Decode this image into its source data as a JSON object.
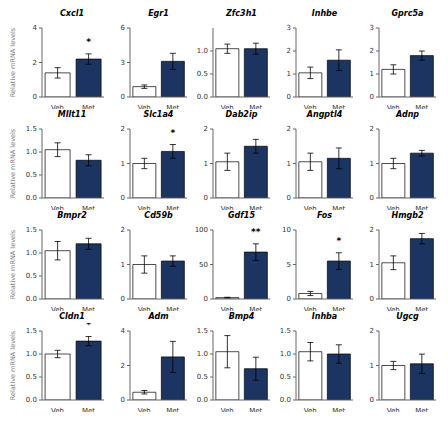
{
  "chart_data": [
    {
      "type": "bar",
      "title": "Cxcl1",
      "categories": [
        "Veh",
        "Met"
      ],
      "values": [
        1.4,
        2.2
      ],
      "errors": [
        0.3,
        0.3
      ],
      "colors": [
        "#FFFFFF",
        "#1c3461"
      ],
      "ylim": [
        0,
        4
      ],
      "yticks": [
        0,
        2,
        4
      ],
      "annotations": [
        {
          "x": "Met",
          "text": "*"
        }
      ],
      "ylabel": "Relative mRNA levels"
    },
    {
      "type": "bar",
      "title": "Egr1",
      "categories": [
        "Veh",
        "Met"
      ],
      "values": [
        0.9,
        3.1
      ],
      "errors": [
        0.15,
        0.7
      ],
      "colors": [
        "#FFFFFF",
        "#1c3461"
      ],
      "ylim": [
        0,
        6
      ],
      "yticks": [
        0,
        3,
        6
      ]
    },
    {
      "type": "bar",
      "title": "Zfc3h1",
      "categories": [
        "Veh",
        "Met"
      ],
      "values": [
        1.05,
        1.05
      ],
      "errors": [
        0.1,
        0.12
      ],
      "colors": [
        "#FFFFFF",
        "#1c3461"
      ],
      "ylim": [
        0,
        1.5
      ],
      "yticks": [
        {
          "value": 0,
          "label": "0.0"
        },
        0.5,
        {
          "value": 1,
          "label": "1.0"
        }
      ]
    },
    {
      "type": "bar",
      "title": "Inhbe",
      "categories": [
        "Veh",
        "Met"
      ],
      "values": [
        1.05,
        1.6
      ],
      "errors": [
        0.25,
        0.45
      ],
      "colors": [
        "#FFFFFF",
        "#1c3461"
      ],
      "ylim": [
        0,
        3
      ],
      "yticks": [
        0,
        1,
        2,
        3
      ]
    },
    {
      "type": "bar",
      "title": "Gprc5a",
      "categories": [
        "Veh",
        "Met"
      ],
      "values": [
        1.2,
        1.8
      ],
      "errors": [
        0.2,
        0.2
      ],
      "colors": [
        "#FFFFFF",
        "#1c3461"
      ],
      "ylim": [
        0,
        3
      ],
      "yticks": [
        0,
        1,
        2,
        3
      ]
    },
    {
      "type": "bar",
      "title": "Mllt11",
      "categories": [
        "Veh",
        "Met"
      ],
      "values": [
        1.05,
        0.82
      ],
      "errors": [
        0.15,
        0.12
      ],
      "colors": [
        "#FFFFFF",
        "#1c3461"
      ],
      "ylim": [
        0,
        1.5
      ],
      "yticks": [
        {
          "value": 0,
          "label": "0.0"
        },
        0.5,
        {
          "value": 1,
          "label": "1.0"
        },
        1.5
      ],
      "ylabel": "Relative mRNA levels"
    },
    {
      "type": "bar",
      "title": "Slc1a4",
      "categories": [
        "Veh",
        "Met"
      ],
      "values": [
        1.0,
        1.35
      ],
      "errors": [
        0.15,
        0.2
      ],
      "colors": [
        "#FFFFFF",
        "#1c3461"
      ],
      "ylim": [
        0,
        2
      ],
      "yticks": [
        0,
        1,
        2
      ],
      "annotations": [
        {
          "x": "Met",
          "text": "*"
        }
      ]
    },
    {
      "type": "bar",
      "title": "Dab2ip",
      "categories": [
        "Veh",
        "Met"
      ],
      "values": [
        1.05,
        1.5
      ],
      "errors": [
        0.25,
        0.2
      ],
      "colors": [
        "#FFFFFF",
        "#1c3461"
      ],
      "ylim": [
        0,
        2
      ],
      "yticks": [
        0,
        1,
        2
      ]
    },
    {
      "type": "bar",
      "title": "Angptl4",
      "categories": [
        "Veh",
        "Met"
      ],
      "values": [
        1.05,
        1.15
      ],
      "errors": [
        0.25,
        0.3
      ],
      "colors": [
        "#FFFFFF",
        "#1c3461"
      ],
      "ylim": [
        0,
        2
      ],
      "yticks": [
        0,
        1,
        2
      ]
    },
    {
      "type": "bar",
      "title": "Adnp",
      "categories": [
        "Veh",
        "Met"
      ],
      "values": [
        1.0,
        1.3
      ],
      "errors": [
        0.15,
        0.08
      ],
      "colors": [
        "#FFFFFF",
        "#1c3461"
      ],
      "ylim": [
        0,
        2
      ],
      "yticks": [
        0,
        1,
        2
      ]
    },
    {
      "type": "bar",
      "title": "Bmpr2",
      "categories": [
        "Veh",
        "Met"
      ],
      "values": [
        1.05,
        1.2
      ],
      "errors": [
        0.2,
        0.12
      ],
      "colors": [
        "#FFFFFF",
        "#1c3461"
      ],
      "ylim": [
        0,
        1.5
      ],
      "yticks": [
        {
          "value": 0,
          "label": "0.0"
        },
        0.5,
        {
          "value": 1,
          "label": "1.0"
        },
        1.5
      ],
      "ylabel": "Relative mRNA levels"
    },
    {
      "type": "bar",
      "title": "Cd59b",
      "categories": [
        "Veh",
        "Met"
      ],
      "values": [
        1.0,
        1.1
      ],
      "errors": [
        0.25,
        0.15
      ],
      "colors": [
        "#FFFFFF",
        "#1c3461"
      ],
      "ylim": [
        0,
        2
      ],
      "yticks": [
        0,
        1,
        2
      ]
    },
    {
      "type": "bar",
      "title": "Gdf15",
      "categories": [
        "Veh",
        "Met"
      ],
      "values": [
        2.0,
        68.0
      ],
      "errors": [
        0.5,
        12.0
      ],
      "colors": [
        "#FFFFFF",
        "#1c3461"
      ],
      "ylim": [
        0,
        100
      ],
      "yticks": [
        0,
        50,
        100
      ],
      "annotations": [
        {
          "x": "Met",
          "text": "**"
        }
      ]
    },
    {
      "type": "bar",
      "title": "Fos",
      "categories": [
        "Veh",
        "Met"
      ],
      "values": [
        0.8,
        5.5
      ],
      "errors": [
        0.3,
        1.2
      ],
      "colors": [
        "#FFFFFF",
        "#1c3461"
      ],
      "ylim": [
        0,
        10
      ],
      "yticks": [
        0,
        5,
        10
      ],
      "annotations": [
        {
          "x": "Met",
          "text": "*"
        }
      ]
    },
    {
      "type": "bar",
      "title": "Hmgb2",
      "categories": [
        "Veh",
        "Met"
      ],
      "values": [
        1.05,
        1.75
      ],
      "errors": [
        0.2,
        0.15
      ],
      "colors": [
        "#FFFFFF",
        "#1c3461"
      ],
      "ylim": [
        0,
        2
      ],
      "yticks": [
        0,
        1,
        2
      ],
      "annotations": [
        {
          "x": "Met",
          "text": "*"
        }
      ]
    },
    {
      "type": "bar",
      "title": "Cldn1",
      "categories": [
        "Veh",
        "Met"
      ],
      "values": [
        1.0,
        1.28
      ],
      "errors": [
        0.08,
        0.1
      ],
      "colors": [
        "#FFFFFF",
        "#1c3461"
      ],
      "ylim": [
        0,
        1.5
      ],
      "yticks": [
        {
          "value": 0,
          "label": "0.0"
        },
        0.5,
        {
          "value": 1,
          "label": "1.0"
        },
        1.5
      ],
      "annotations": [
        {
          "x": "Met",
          "text": "*"
        }
      ],
      "ylabel": "Relative mRNA levels"
    },
    {
      "type": "bar",
      "title": "Adm",
      "categories": [
        "Veh",
        "Met"
      ],
      "values": [
        0.45,
        2.5
      ],
      "errors": [
        0.1,
        0.9
      ],
      "colors": [
        "#FFFFFF",
        "#1c3461"
      ],
      "ylim": [
        0,
        4
      ],
      "yticks": [
        0,
        2,
        4
      ]
    },
    {
      "type": "bar",
      "title": "Bmp4",
      "categories": [
        "Veh",
        "Met"
      ],
      "values": [
        1.05,
        0.68
      ],
      "errors": [
        0.35,
        0.25
      ],
      "colors": [
        "#FFFFFF",
        "#1c3461"
      ],
      "ylim": [
        0,
        1.5
      ],
      "yticks": [
        {
          "value": 0,
          "label": "0.0"
        },
        0.5,
        {
          "value": 1,
          "label": "1.0"
        },
        1.5
      ]
    },
    {
      "type": "bar",
      "title": "Inhba",
      "categories": [
        "Veh",
        "Met"
      ],
      "values": [
        1.05,
        1.0
      ],
      "errors": [
        0.2,
        0.2
      ],
      "colors": [
        "#FFFFFF",
        "#1c3461"
      ],
      "ylim": [
        0,
        1.5
      ],
      "yticks": [
        {
          "value": 0,
          "label": "0.0"
        },
        0.5,
        {
          "value": 1,
          "label": "1.0"
        },
        1.5
      ]
    },
    {
      "type": "bar",
      "title": "Ugcg",
      "categories": [
        "Veh",
        "Met"
      ],
      "values": [
        1.0,
        1.05
      ],
      "errors": [
        0.12,
        0.28
      ],
      "colors": [
        "#FFFFFF",
        "#1c3461"
      ],
      "ylim": [
        0,
        2
      ],
      "yticks": [
        0,
        1,
        2
      ]
    }
  ]
}
